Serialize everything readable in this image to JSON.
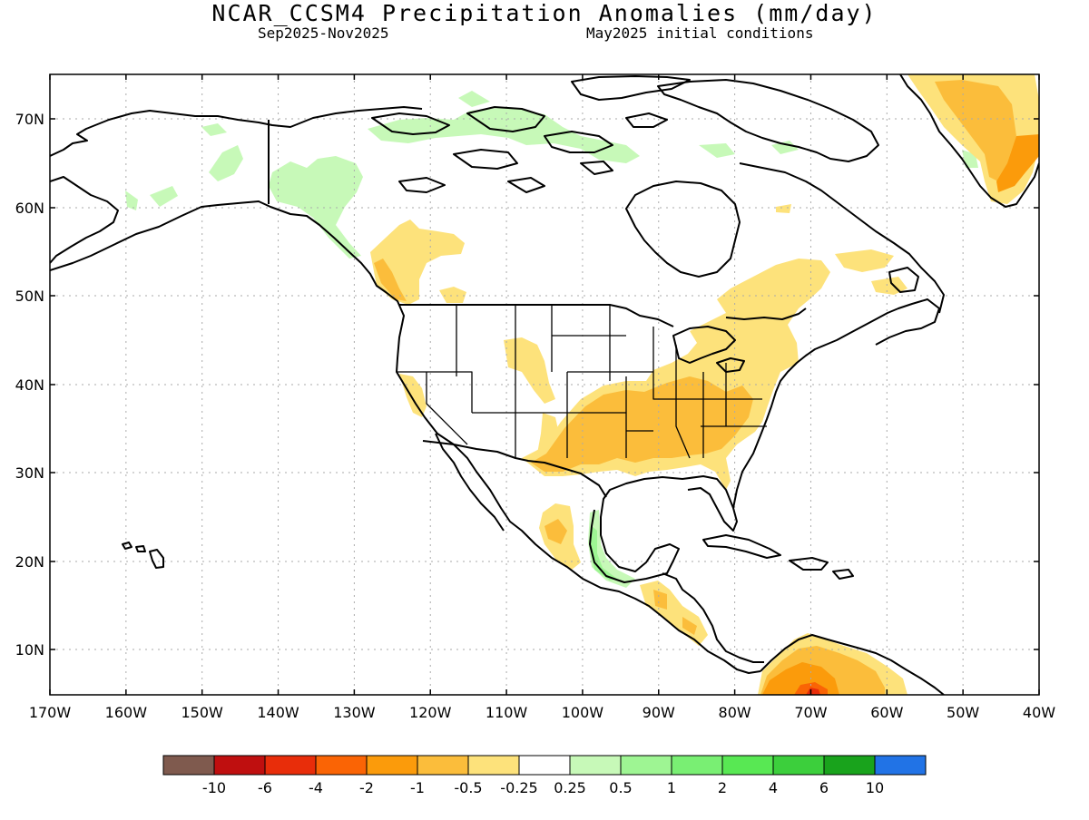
{
  "title": "NCAR_CCSM4 Precipitation Anomalies (mm/day)",
  "subtitle_left": "Sep2025-Nov2025",
  "subtitle_right": "May2025 initial conditions",
  "lat_labels": [
    "70N",
    "60N",
    "50N",
    "40N",
    "30N",
    "20N",
    "10N"
  ],
  "lon_labels": [
    "170W",
    "160W",
    "150W",
    "140W",
    "130W",
    "120W",
    "110W",
    "100W",
    "90W",
    "80W",
    "70W",
    "60W",
    "50W",
    "40W"
  ],
  "legend": {
    "colors": [
      "#7f5a4e",
      "#bf0f0f",
      "#e82d0a",
      "#fa6405",
      "#fb9b0b",
      "#fbbd3b",
      "#fde27b",
      "#ffffff",
      "#c7f9b8",
      "#9ef593",
      "#79ef73",
      "#58e853",
      "#3ccf3c",
      "#19a31c",
      "#2173e6"
    ],
    "labels": [
      "-10",
      "-6",
      "-4",
      "-2",
      "-1",
      "-0.5",
      "-0.25",
      "0.25",
      "0.5",
      "1",
      "2",
      "4",
      "6",
      "10"
    ]
  }
}
